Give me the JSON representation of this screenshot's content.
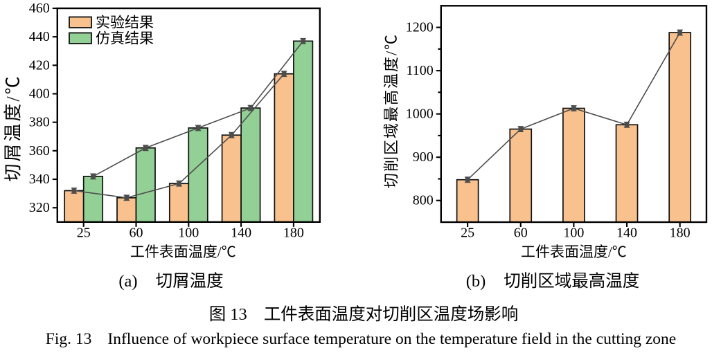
{
  "page": {
    "background": "#ffffff",
    "text_color": "#000000",
    "axis_color": "#000000",
    "line_color": "#4d4d4d"
  },
  "chart_data": [
    {
      "type": "bar",
      "panel": "a",
      "categories": [
        "25",
        "60",
        "100",
        "140",
        "180"
      ],
      "series": [
        {
          "name": "实验结果",
          "color": "#F8C18E",
          "values": [
            332,
            327,
            337,
            371,
            414
          ]
        },
        {
          "name": "仿真结果",
          "color": "#92D096",
          "values": [
            342,
            362,
            376,
            390,
            437
          ]
        }
      ],
      "xlabel": "工件表面温度/℃",
      "ylabel": "切屑温度/℃",
      "ylim": [
        310,
        460
      ],
      "yticks": [
        320,
        340,
        360,
        380,
        400,
        420,
        440,
        460
      ],
      "minor_tick_step": 0,
      "grid": "off",
      "legend_position": "top-left",
      "line_markers": "square-with-error-bars"
    },
    {
      "type": "bar",
      "panel": "b",
      "categories": [
        "25",
        "60",
        "100",
        "140",
        "180"
      ],
      "series": [
        {
          "name": "实验结果",
          "color": "#F8C18E",
          "values": [
            848,
            965,
            1013,
            975,
            1188
          ]
        }
      ],
      "xlabel": "工件表面温度/℃",
      "ylabel": "切削区域最高温度/℃",
      "ylim": [
        750,
        1250
      ],
      "yticks": [
        800,
        900,
        1000,
        1100,
        1200
      ],
      "minor_tick_step": 50,
      "grid": "off",
      "legend_position": "none",
      "line_markers": "square-with-error-bars"
    }
  ],
  "subcaptions": [
    {
      "label": "(a)",
      "text": "切屑温度"
    },
    {
      "label": "(b)",
      "text": "切削区域最高温度"
    }
  ],
  "caption_zh": {
    "label": "图 13",
    "text": "工件表面温度对切削区温度场影响"
  },
  "caption_en": {
    "label": "Fig. 13",
    "text": "Influence of workpiece surface temperature on the temperature field in the cutting zone"
  }
}
